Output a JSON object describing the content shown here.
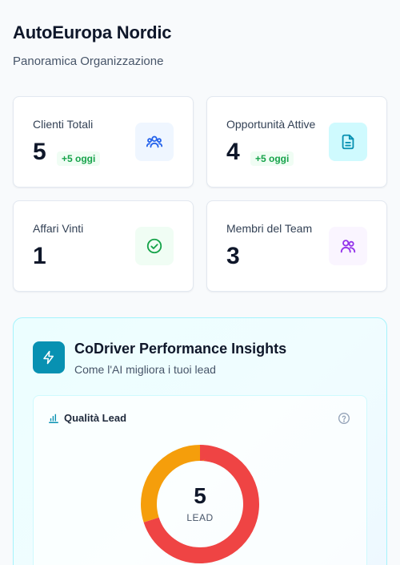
{
  "header": {
    "title": "AutoEuropa Nordic",
    "subtitle": "Panoramica Organizzazione"
  },
  "stats": [
    {
      "label": "Clienti Totali",
      "value": "5",
      "badge": "+5 oggi",
      "icon": "users-icon",
      "icon_color": "#2563eb",
      "icon_bg": "#eff6ff"
    },
    {
      "label": "Opportunità Attive",
      "value": "4",
      "badge": "+5 oggi",
      "icon": "document-icon",
      "icon_color": "#0891b2",
      "icon_bg": "#cffafe"
    },
    {
      "label": "Affari Vinti",
      "value": "1",
      "icon": "check-circle-icon",
      "icon_color": "#16a34a",
      "icon_bg": "#f0fdf4"
    },
    {
      "label": "Membri del Team",
      "value": "3",
      "icon": "team-icon",
      "icon_color": "#9333ea",
      "icon_bg": "#faf5ff"
    }
  ],
  "insights": {
    "title": "CoDriver Performance Insights",
    "subtitle": "Come l'AI migliora i tuoi lead",
    "icon": "lightning-icon",
    "quality": {
      "title": "Qualità Lead",
      "total": "5",
      "total_label": "LEAD",
      "segments": [
        {
          "value": 3.5,
          "color": "#ef4444"
        },
        {
          "value": 1.5,
          "color": "#f59e0b"
        }
      ]
    }
  }
}
